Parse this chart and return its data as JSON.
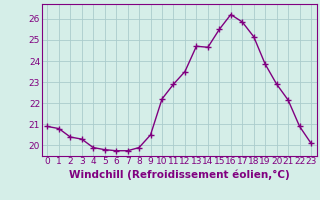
{
  "x": [
    0,
    1,
    2,
    3,
    4,
    5,
    6,
    7,
    8,
    9,
    10,
    11,
    12,
    13,
    14,
    15,
    16,
    17,
    18,
    19,
    20,
    21,
    22,
    23
  ],
  "y": [
    20.9,
    20.8,
    20.4,
    20.3,
    19.9,
    19.8,
    19.75,
    19.75,
    19.9,
    20.5,
    22.2,
    22.9,
    23.5,
    24.7,
    24.65,
    25.5,
    26.2,
    25.85,
    25.15,
    23.85,
    22.9,
    22.15,
    20.9,
    20.1
  ],
  "line_color": "#800080",
  "marker": "+",
  "marker_size": 4,
  "bg_color": "#d5eee8",
  "grid_color": "#aacccc",
  "xlabel": "Windchill (Refroidissement éolien,°C)",
  "xlabel_fontsize": 7.5,
  "ylabel_ticks": [
    20,
    21,
    22,
    23,
    24,
    25,
    26
  ],
  "xtick_labels": [
    "0",
    "1",
    "2",
    "3",
    "4",
    "5",
    "6",
    "7",
    "8",
    "9",
    "10",
    "11",
    "12",
    "13",
    "14",
    "15",
    "16",
    "17",
    "18",
    "19",
    "20",
    "21",
    "22",
    "23"
  ],
  "ylim": [
    19.5,
    26.7
  ],
  "xlim": [
    -0.5,
    23.5
  ],
  "tick_color": "#800080",
  "tick_fontsize": 6.5,
  "line_width": 1.0,
  "spine_color": "#800080"
}
